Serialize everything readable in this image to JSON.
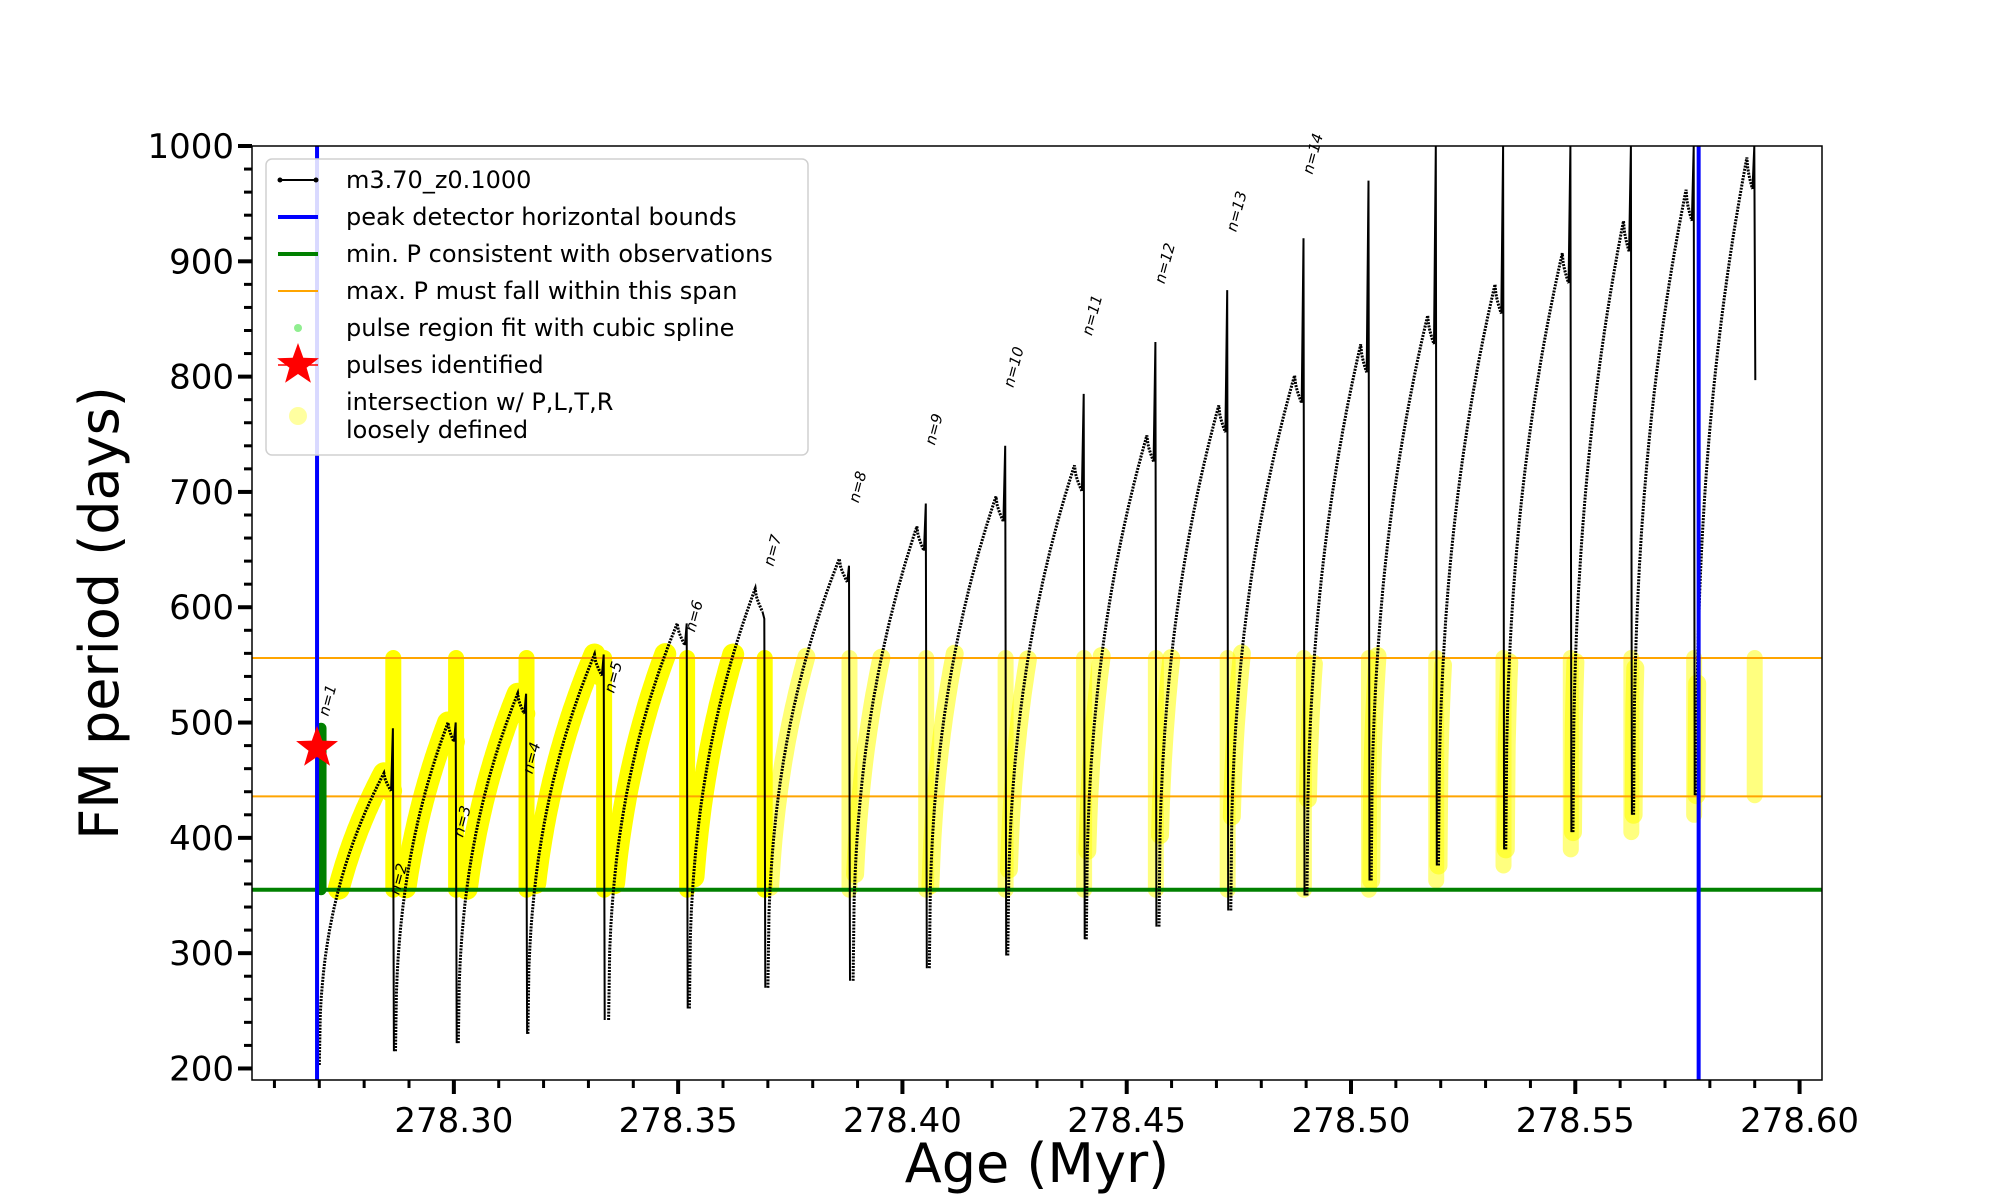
{
  "chart_data": {
    "type": "line",
    "xlabel": "Age (Myr)",
    "ylabel": "FM period (days)",
    "xlim": [
      278.255,
      278.605
    ],
    "ylim": [
      190,
      1000
    ],
    "xticks": [
      278.3,
      278.35,
      278.4,
      278.45,
      278.5,
      278.55,
      278.6
    ],
    "xtick_labels": [
      "278.30",
      "278.35",
      "278.40",
      "278.45",
      "278.50",
      "278.55",
      "278.60"
    ],
    "yticks": [
      200,
      300,
      400,
      500,
      600,
      700,
      800,
      900,
      1000
    ],
    "ytick_labels": [
      "200",
      "300",
      "400",
      "500",
      "600",
      "700",
      "800",
      "900",
      "1000"
    ],
    "grid": false,
    "legend_placement": "top-left",
    "legend": [
      {
        "label": "m3.70_z0.1000",
        "kind": "line-dots",
        "color": "#000000"
      },
      {
        "label": "peak detector horizontal bounds",
        "kind": "line",
        "color": "#0000ff"
      },
      {
        "label": "min. P consistent with observations",
        "kind": "line",
        "color": "#008000"
      },
      {
        "label": "max. P must fall within this span",
        "kind": "thin-line",
        "color": "#ffa500"
      },
      {
        "label": "pulse region fit with cubic spline",
        "kind": "dot",
        "color": "#90ee90"
      },
      {
        "label": "pulses identified",
        "kind": "star",
        "color": "#ff0000"
      },
      {
        "label": "intersection w/ P,L,T,R",
        "label2": "loosely defined",
        "kind": "bigdot",
        "color": "#ffffa0"
      }
    ],
    "vertical_lines": {
      "color": "#0000ff",
      "x": [
        278.2695,
        278.5775
      ]
    },
    "min_period_line": {
      "color": "#008000",
      "y": 355
    },
    "max_period_span": {
      "color": "#ffa500",
      "y": [
        436,
        556
      ]
    },
    "series_color": "#000000",
    "highlight_color": "#ffff00",
    "spline_color": "#008000",
    "star": {
      "x": 278.2695,
      "y": 478,
      "color": "#ff0000"
    },
    "pulses": [
      {
        "n": "n=1",
        "start": 278.27,
        "end": 278.286,
        "min": 203,
        "max": 456,
        "spike": 495,
        "label_y": 505,
        "label_x": 278.272
      },
      {
        "n": "n=2",
        "start": 278.287,
        "end": 278.3,
        "min": 215,
        "max": 500,
        "spike": 500,
        "label_y": 350,
        "label_x": 278.2878
      },
      {
        "n": "n=3",
        "start": 278.301,
        "end": 278.3157,
        "min": 222,
        "max": 525,
        "spike": 525,
        "label_y": 400,
        "label_x": 278.302
      },
      {
        "n": "n=4",
        "start": 278.3165,
        "end": 278.333,
        "min": 230,
        "max": 559,
        "spike": 559,
        "label_y": 455,
        "label_x": 278.3175
      },
      {
        "n": "n=5",
        "start": 278.3345,
        "end": 278.3515,
        "min": 242,
        "max": 586,
        "spike": 586,
        "label_y": 525,
        "label_x": 278.3357
      },
      {
        "n": "n=6",
        "start": 278.3525,
        "end": 278.3688,
        "min": 252,
        "max": 616,
        "spike": 590,
        "label_y": 578,
        "label_x": 278.3537
      },
      {
        "n": "n=7",
        "start": 278.37,
        "end": 278.3877,
        "min": 270,
        "max": 642,
        "spike": 636,
        "label_y": 635,
        "label_x": 278.3712
      },
      {
        "n": "n=8",
        "start": 278.389,
        "end": 278.4048,
        "min": 276,
        "max": 670,
        "spike": 690,
        "label_y": 690,
        "label_x": 278.3902
      },
      {
        "n": "n=9",
        "start": 278.406,
        "end": 278.4225,
        "min": 287,
        "max": 696,
        "spike": 740,
        "label_y": 740,
        "label_x": 278.4072
      },
      {
        "n": "n=10",
        "start": 278.4235,
        "end": 278.44,
        "min": 298,
        "max": 723,
        "spike": 785,
        "label_y": 790,
        "label_x": 278.4247
      },
      {
        "n": "n=11",
        "start": 278.441,
        "end": 278.456,
        "min": 312,
        "max": 749,
        "spike": 830,
        "label_y": 835,
        "label_x": 278.4422
      },
      {
        "n": "n=12",
        "start": 278.4572,
        "end": 278.472,
        "min": 323,
        "max": 775,
        "spike": 875,
        "label_y": 880,
        "label_x": 278.4584
      },
      {
        "n": "n=13",
        "start": 278.4732,
        "end": 278.489,
        "min": 337,
        "max": 801,
        "spike": 920,
        "label_y": 925,
        "label_x": 278.4744
      },
      {
        "n": "n=14",
        "start": 278.4902,
        "end": 278.5035,
        "min": 350,
        "max": 828,
        "spike": 970,
        "label_y": 975,
        "label_x": 278.4914
      },
      {
        "n": "",
        "start": 278.5045,
        "end": 278.5185,
        "min": 363,
        "max": 853,
        "spike": 1000,
        "label_y": 0,
        "label_x": 0
      },
      {
        "n": "",
        "start": 278.5195,
        "end": 278.5335,
        "min": 376,
        "max": 880,
        "spike": 1000,
        "label_y": 0,
        "label_x": 0
      },
      {
        "n": "",
        "start": 278.5345,
        "end": 278.5485,
        "min": 390,
        "max": 907,
        "spike": 1000,
        "label_y": 0,
        "label_x": 0
      },
      {
        "n": "",
        "start": 278.5495,
        "end": 278.562,
        "min": 405,
        "max": 935,
        "spike": 1000,
        "label_y": 0,
        "label_x": 0
      },
      {
        "n": "",
        "start": 278.563,
        "end": 278.576,
        "min": 420,
        "max": 962,
        "spike": 1000,
        "label_y": 0,
        "label_x": 0
      },
      {
        "n": "",
        "start": 278.577,
        "end": 278.5895,
        "min": 437,
        "max": 990,
        "spike": 1000,
        "label_y": 0,
        "label_x": 0
      }
    ],
    "final_drop": {
      "x": 278.5895,
      "y": 797
    }
  }
}
